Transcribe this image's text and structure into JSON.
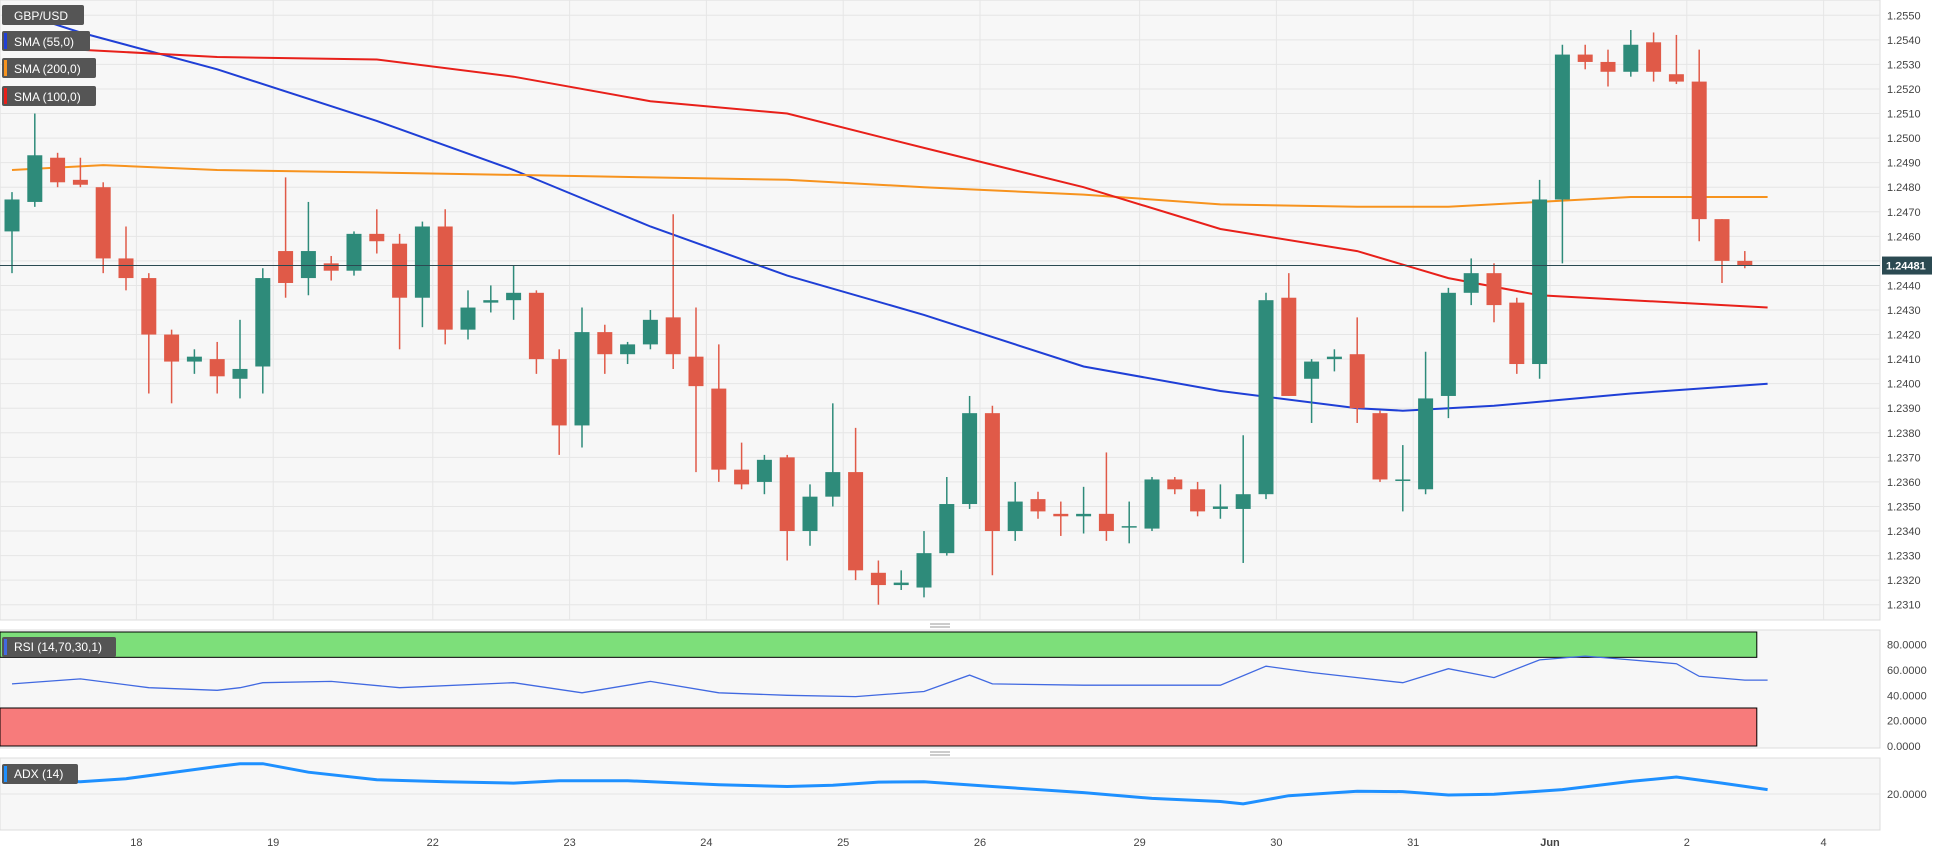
{
  "colors": {
    "bull": "#2e8b7a",
    "bear": "#e05a48",
    "sma55": "#1f3fd6",
    "sma200": "#f7931e",
    "sma100": "#e8201a",
    "rsi_line": "#4169e1",
    "adx_line": "#1e90ff",
    "rsi_upper_zone": "#7ddf7a",
    "rsi_lower_zone": "#f77b7b",
    "price_tag": "#2b4a52",
    "legend_bg": "#555555",
    "grid": "#e6e6e6",
    "panel_bg": "#f7f7f7"
  },
  "chart_data": [
    {
      "type": "candlestick",
      "title": "GBP/USD",
      "ylim": [
        1.2305,
        1.2555
      ],
      "y_ticks": [
        "1.2550",
        "1.2540",
        "1.2530",
        "1.2520",
        "1.2510",
        "1.2500",
        "1.2490",
        "1.2480",
        "1.2470",
        "1.2460",
        "1.2450",
        "1.2440",
        "1.2430",
        "1.2420",
        "1.2410",
        "1.2400",
        "1.2390",
        "1.2380",
        "1.2370",
        "1.2360",
        "1.2350",
        "1.2340",
        "1.2330",
        "1.2320",
        "1.2310"
      ],
      "current_price": "1.24481",
      "x_labels": [
        {
          "label": "18",
          "index": 3
        },
        {
          "label": "19",
          "index": 9
        },
        {
          "label": "22",
          "index": 16
        },
        {
          "label": "23",
          "index": 22
        },
        {
          "label": "24",
          "index": 28
        },
        {
          "label": "25",
          "index": 34
        },
        {
          "label": "26",
          "index": 40
        },
        {
          "label": "29",
          "index": 47
        },
        {
          "label": "30",
          "index": 53
        },
        {
          "label": "31",
          "index": 59
        },
        {
          "label": "Jun",
          "index": 65
        },
        {
          "label": "2",
          "index": 71
        },
        {
          "label": "4",
          "index": 77
        }
      ],
      "candles": [
        {
          "o": 1.2462,
          "h": 1.2478,
          "l": 1.2445,
          "c": 1.2475
        },
        {
          "o": 1.2474,
          "h": 1.251,
          "l": 1.2472,
          "c": 1.2493
        },
        {
          "o": 1.2492,
          "h": 1.2494,
          "l": 1.248,
          "c": 1.2482
        },
        {
          "o": 1.2483,
          "h": 1.2492,
          "l": 1.248,
          "c": 1.2481
        },
        {
          "o": 1.248,
          "h": 1.2482,
          "l": 1.2445,
          "c": 1.2451
        },
        {
          "o": 1.2451,
          "h": 1.2464,
          "l": 1.2438,
          "c": 1.2443
        },
        {
          "o": 1.2443,
          "h": 1.2445,
          "l": 1.2396,
          "c": 1.242
        },
        {
          "o": 1.242,
          "h": 1.2422,
          "l": 1.2392,
          "c": 1.2409
        },
        {
          "o": 1.2409,
          "h": 1.2414,
          "l": 1.2404,
          "c": 1.2411
        },
        {
          "o": 1.241,
          "h": 1.2417,
          "l": 1.2396,
          "c": 1.2403
        },
        {
          "o": 1.2402,
          "h": 1.2426,
          "l": 1.2394,
          "c": 1.2406
        },
        {
          "o": 1.2407,
          "h": 1.2447,
          "l": 1.2396,
          "c": 1.2443
        },
        {
          "o": 1.2454,
          "h": 1.2484,
          "l": 1.2435,
          "c": 1.2441
        },
        {
          "o": 1.2443,
          "h": 1.2474,
          "l": 1.2436,
          "c": 1.2454
        },
        {
          "o": 1.2449,
          "h": 1.2452,
          "l": 1.2442,
          "c": 1.2446
        },
        {
          "o": 1.2446,
          "h": 1.2462,
          "l": 1.2444,
          "c": 1.2461
        },
        {
          "o": 1.2461,
          "h": 1.2471,
          "l": 1.2453,
          "c": 1.2458
        },
        {
          "o": 1.2457,
          "h": 1.2461,
          "l": 1.2414,
          "c": 1.2435
        },
        {
          "o": 1.2435,
          "h": 1.2466,
          "l": 1.2423,
          "c": 1.2464
        },
        {
          "o": 1.2464,
          "h": 1.2471,
          "l": 1.2416,
          "c": 1.2422
        },
        {
          "o": 1.2422,
          "h": 1.2438,
          "l": 1.2418,
          "c": 1.2431
        },
        {
          "o": 1.2433,
          "h": 1.244,
          "l": 1.2429,
          "c": 1.2434
        },
        {
          "o": 1.2434,
          "h": 1.2448,
          "l": 1.2426,
          "c": 1.2437
        },
        {
          "o": 1.2437,
          "h": 1.2438,
          "l": 1.2404,
          "c": 1.241
        },
        {
          "o": 1.241,
          "h": 1.2414,
          "l": 1.2371,
          "c": 1.2383
        },
        {
          "o": 1.2383,
          "h": 1.2431,
          "l": 1.2374,
          "c": 1.2421
        },
        {
          "o": 1.2421,
          "h": 1.2424,
          "l": 1.2404,
          "c": 1.2412
        },
        {
          "o": 1.2412,
          "h": 1.2417,
          "l": 1.2408,
          "c": 1.2416
        },
        {
          "o": 1.2416,
          "h": 1.243,
          "l": 1.2414,
          "c": 1.2426
        },
        {
          "o": 1.2427,
          "h": 1.2469,
          "l": 1.2406,
          "c": 1.2412
        },
        {
          "o": 1.2411,
          "h": 1.2431,
          "l": 1.2364,
          "c": 1.2399
        },
        {
          "o": 1.2398,
          "h": 1.2416,
          "l": 1.236,
          "c": 1.2365
        },
        {
          "o": 1.2365,
          "h": 1.2376,
          "l": 1.2357,
          "c": 1.2359
        },
        {
          "o": 1.236,
          "h": 1.2371,
          "l": 1.2355,
          "c": 1.2369
        },
        {
          "o": 1.237,
          "h": 1.2371,
          "l": 1.2328,
          "c": 1.234
        },
        {
          "o": 1.234,
          "h": 1.2359,
          "l": 1.2334,
          "c": 1.2354
        },
        {
          "o": 1.2354,
          "h": 1.2392,
          "l": 1.235,
          "c": 1.2364
        },
        {
          "o": 1.2364,
          "h": 1.2382,
          "l": 1.232,
          "c": 1.2324
        },
        {
          "o": 1.2323,
          "h": 1.2328,
          "l": 1.231,
          "c": 1.2318
        },
        {
          "o": 1.2318,
          "h": 1.2324,
          "l": 1.2316,
          "c": 1.2319
        },
        {
          "o": 1.2317,
          "h": 1.234,
          "l": 1.2313,
          "c": 1.2331
        },
        {
          "o": 1.2331,
          "h": 1.2362,
          "l": 1.233,
          "c": 1.2351
        },
        {
          "o": 1.2351,
          "h": 1.2395,
          "l": 1.2349,
          "c": 1.2388
        },
        {
          "o": 1.2388,
          "h": 1.2391,
          "l": 1.2322,
          "c": 1.234
        },
        {
          "o": 1.234,
          "h": 1.236,
          "l": 1.2336,
          "c": 1.2352
        },
        {
          "o": 1.2353,
          "h": 1.2356,
          "l": 1.2345,
          "c": 1.2348
        },
        {
          "o": 1.2347,
          "h": 1.2352,
          "l": 1.2338,
          "c": 1.2346
        },
        {
          "o": 1.2346,
          "h": 1.2358,
          "l": 1.2339,
          "c": 1.2347
        },
        {
          "o": 1.2347,
          "h": 1.2372,
          "l": 1.2336,
          "c": 1.234
        },
        {
          "o": 1.2342,
          "h": 1.2352,
          "l": 1.2335,
          "c": 1.2342
        },
        {
          "o": 1.2341,
          "h": 1.2362,
          "l": 1.234,
          "c": 1.2361
        },
        {
          "o": 1.2361,
          "h": 1.2362,
          "l": 1.2355,
          "c": 1.2357
        },
        {
          "o": 1.2357,
          "h": 1.236,
          "l": 1.2346,
          "c": 1.2348
        },
        {
          "o": 1.2349,
          "h": 1.2359,
          "l": 1.2345,
          "c": 1.235
        },
        {
          "o": 1.2349,
          "h": 1.2379,
          "l": 1.2327,
          "c": 1.2355
        },
        {
          "o": 1.2355,
          "h": 1.2437,
          "l": 1.2353,
          "c": 1.2434
        },
        {
          "o": 1.2435,
          "h": 1.2445,
          "l": 1.2395,
          "c": 1.2395
        },
        {
          "o": 1.2402,
          "h": 1.241,
          "l": 1.2384,
          "c": 1.2409
        },
        {
          "o": 1.241,
          "h": 1.2414,
          "l": 1.2405,
          "c": 1.2411
        },
        {
          "o": 1.2412,
          "h": 1.2427,
          "l": 1.2384,
          "c": 1.239
        },
        {
          "o": 1.2388,
          "h": 1.2389,
          "l": 1.236,
          "c": 1.2361
        },
        {
          "o": 1.2361,
          "h": 1.2375,
          "l": 1.2348,
          "c": 1.2361
        },
        {
          "o": 1.2357,
          "h": 1.2413,
          "l": 1.2355,
          "c": 1.2394
        },
        {
          "o": 1.2395,
          "h": 1.2439,
          "l": 1.2386,
          "c": 1.2437
        },
        {
          "o": 1.2437,
          "h": 1.2451,
          "l": 1.2432,
          "c": 1.2445
        },
        {
          "o": 1.2445,
          "h": 1.2449,
          "l": 1.2425,
          "c": 1.2432
        },
        {
          "o": 1.2433,
          "h": 1.2435,
          "l": 1.2404,
          "c": 1.2408
        },
        {
          "o": 1.2408,
          "h": 1.2483,
          "l": 1.2402,
          "c": 1.2475
        },
        {
          "o": 1.2475,
          "h": 1.2538,
          "l": 1.2449,
          "c": 1.2534
        },
        {
          "o": 1.2534,
          "h": 1.2538,
          "l": 1.2528,
          "c": 1.2531
        },
        {
          "o": 1.2531,
          "h": 1.2536,
          "l": 1.2521,
          "c": 1.2527
        },
        {
          "o": 1.2527,
          "h": 1.2544,
          "l": 1.2525,
          "c": 1.2538
        },
        {
          "o": 1.2539,
          "h": 1.2543,
          "l": 1.2523,
          "c": 1.2527
        },
        {
          "o": 1.2526,
          "h": 1.2542,
          "l": 1.2522,
          "c": 1.2523
        },
        {
          "o": 1.2523,
          "h": 1.2536,
          "l": 1.2458,
          "c": 1.2467
        },
        {
          "o": 1.2467,
          "h": 1.2467,
          "l": 1.2441,
          "c": 1.245
        },
        {
          "o": 1.245,
          "h": 1.2454,
          "l": 1.2447,
          "c": 1.2448
        }
      ],
      "series": [
        {
          "name": "SMA (55,0)",
          "points": [
            [
              0,
              1.2552
            ],
            [
              3,
              1.2543
            ],
            [
              9,
              1.2528
            ],
            [
              16,
              1.2507
            ],
            [
              22,
              1.2487
            ],
            [
              28,
              1.2464
            ],
            [
              34,
              1.2444
            ],
            [
              40,
              1.2428
            ],
            [
              47,
              1.2407
            ],
            [
              53,
              1.2397
            ],
            [
              59,
              1.239
            ],
            [
              61,
              1.2389
            ],
            [
              65,
              1.2391
            ],
            [
              71,
              1.2396
            ],
            [
              77,
              1.24
            ]
          ]
        },
        {
          "name": "SMA (200,0)",
          "points": [
            [
              0,
              1.2487
            ],
            [
              4,
              1.2489
            ],
            [
              9,
              1.2487
            ],
            [
              16,
              1.2486
            ],
            [
              22,
              1.2485
            ],
            [
              28,
              1.2484
            ],
            [
              34,
              1.2483
            ],
            [
              40,
              1.248
            ],
            [
              47,
              1.2477
            ],
            [
              53,
              1.2473
            ],
            [
              59,
              1.2472
            ],
            [
              63,
              1.2472
            ],
            [
              67,
              1.2474
            ],
            [
              71,
              1.2476
            ],
            [
              77,
              1.2476
            ]
          ]
        },
        {
          "name": "SMA (100,0)",
          "points": [
            [
              0,
              1.2536
            ],
            [
              3,
              1.2536
            ],
            [
              9,
              1.2533
            ],
            [
              16,
              1.2532
            ],
            [
              22,
              1.2525
            ],
            [
              28,
              1.2515
            ],
            [
              34,
              1.251
            ],
            [
              40,
              1.2496
            ],
            [
              47,
              1.248
            ],
            [
              53,
              1.2463
            ],
            [
              59,
              1.2454
            ],
            [
              63,
              1.2443
            ],
            [
              67,
              1.2436
            ],
            [
              71,
              1.2434
            ],
            [
              77,
              1.2431
            ]
          ]
        }
      ]
    },
    {
      "type": "line",
      "title": "RSI (14,70,30,1)",
      "ylim": [
        0,
        90
      ],
      "y_ticks": [
        "80.0000",
        "60.0000",
        "40.0000",
        "20.0000",
        "0.0000"
      ],
      "overbought": 70,
      "oversold": 30,
      "series": [
        {
          "name": "RSI (14,70,30,1)",
          "points": [
            [
              0,
              49
            ],
            [
              3,
              53
            ],
            [
              6,
              46
            ],
            [
              9,
              44
            ],
            [
              10,
              46
            ],
            [
              11,
              50
            ],
            [
              14,
              51
            ],
            [
              17,
              46
            ],
            [
              22,
              50
            ],
            [
              25,
              42
            ],
            [
              28,
              51
            ],
            [
              31,
              42
            ],
            [
              34,
              40
            ],
            [
              37,
              39
            ],
            [
              40,
              43
            ],
            [
              42,
              56
            ],
            [
              43,
              49
            ],
            [
              47,
              48
            ],
            [
              50,
              48
            ],
            [
              53,
              48
            ],
            [
              55,
              63
            ],
            [
              57,
              58
            ],
            [
              59,
              54
            ],
            [
              61,
              50
            ],
            [
              63,
              61
            ],
            [
              65,
              54
            ],
            [
              67,
              68
            ],
            [
              69,
              71
            ],
            [
              71,
              68
            ],
            [
              73,
              65
            ],
            [
              74,
              55
            ],
            [
              76,
              52
            ],
            [
              77,
              52
            ]
          ]
        }
      ]
    },
    {
      "type": "line",
      "title": "ADX (14)",
      "ylim": [
        10,
        30
      ],
      "y_ticks": [
        "20.0000"
      ],
      "series": [
        {
          "name": "ADX (14)",
          "points": [
            [
              0,
              24.3
            ],
            [
              3,
              23.6
            ],
            [
              5,
              24.5
            ],
            [
              7,
              26.3
            ],
            [
              9,
              28.1
            ],
            [
              10,
              28.9
            ],
            [
              11,
              28.9
            ],
            [
              13,
              26.4
            ],
            [
              16,
              24.2
            ],
            [
              19,
              23.6
            ],
            [
              22,
              23.2
            ],
            [
              24,
              23.9
            ],
            [
              27,
              23.9
            ],
            [
              31,
              22.7
            ],
            [
              34,
              22.2
            ],
            [
              36,
              22.6
            ],
            [
              38,
              23.5
            ],
            [
              40,
              23.6
            ],
            [
              43,
              22.2
            ],
            [
              47,
              20.4
            ],
            [
              50,
              18.7
            ],
            [
              53,
              17.8
            ],
            [
              54,
              17.1
            ],
            [
              56,
              19.5
            ],
            [
              59,
              20.8
            ],
            [
              61,
              20.7
            ],
            [
              63,
              19.7
            ],
            [
              65,
              19.9
            ],
            [
              68,
              21.3
            ],
            [
              71,
              23.7
            ],
            [
              73,
              25.0
            ],
            [
              75,
              23.2
            ],
            [
              77,
              21.3
            ]
          ]
        }
      ]
    }
  ]
}
